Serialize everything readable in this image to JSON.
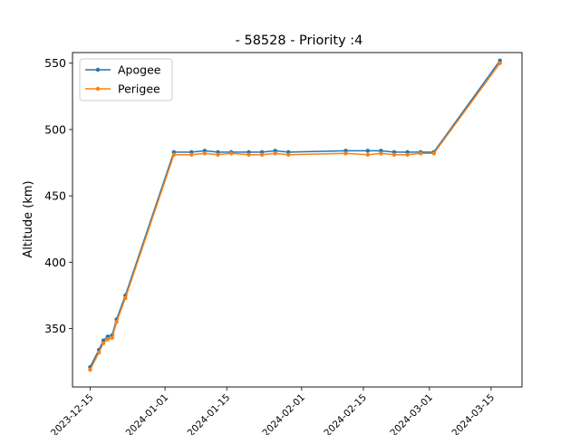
{
  "chart_data": {
    "type": "line",
    "title": "- 58528 - Priority :4",
    "xlabel": "",
    "ylabel": "Altitude (km)",
    "x_type": "date",
    "xlim": [
      "2023-12-11",
      "2024-03-22"
    ],
    "ylim": [
      306,
      558
    ],
    "x_ticks": [
      "2023-12-15",
      "2024-01-01",
      "2024-01-15",
      "2024-02-01",
      "2024-02-15",
      "2024-03-01",
      "2024-03-15"
    ],
    "y_ticks": [
      350,
      400,
      450,
      500,
      550
    ],
    "grid": false,
    "legend_position": "upper left",
    "series": [
      {
        "name": "Apogee",
        "color": "#1f77b4",
        "points": [
          [
            "2023-12-15",
            321
          ],
          [
            "2023-12-17",
            334
          ],
          [
            "2023-12-18",
            341
          ],
          [
            "2023-12-19",
            344
          ],
          [
            "2023-12-20",
            345
          ],
          [
            "2023-12-21",
            357
          ],
          [
            "2023-12-23",
            375
          ],
          [
            "2024-01-03",
            483
          ],
          [
            "2024-01-07",
            483
          ],
          [
            "2024-01-10",
            484
          ],
          [
            "2024-01-13",
            483
          ],
          [
            "2024-01-16",
            483
          ],
          [
            "2024-01-20",
            483
          ],
          [
            "2024-01-23",
            483
          ],
          [
            "2024-01-26",
            484
          ],
          [
            "2024-01-29",
            483
          ],
          [
            "2024-02-11",
            484
          ],
          [
            "2024-02-16",
            484
          ],
          [
            "2024-02-19",
            484
          ],
          [
            "2024-02-22",
            483
          ],
          [
            "2024-02-25",
            483
          ],
          [
            "2024-02-28",
            483
          ],
          [
            "2024-03-02",
            483
          ],
          [
            "2024-03-17",
            552
          ]
        ]
      },
      {
        "name": "Perigee",
        "color": "#ff7f0e",
        "points": [
          [
            "2023-12-15",
            319
          ],
          [
            "2023-12-17",
            332
          ],
          [
            "2023-12-18",
            339
          ],
          [
            "2023-12-19",
            342
          ],
          [
            "2023-12-20",
            343
          ],
          [
            "2023-12-21",
            355
          ],
          [
            "2023-12-23",
            373
          ],
          [
            "2024-01-03",
            481
          ],
          [
            "2024-01-07",
            481
          ],
          [
            "2024-01-10",
            482
          ],
          [
            "2024-01-13",
            481
          ],
          [
            "2024-01-16",
            482
          ],
          [
            "2024-01-20",
            481
          ],
          [
            "2024-01-23",
            481
          ],
          [
            "2024-01-26",
            482
          ],
          [
            "2024-01-29",
            481
          ],
          [
            "2024-02-11",
            482
          ],
          [
            "2024-02-16",
            481
          ],
          [
            "2024-02-19",
            482
          ],
          [
            "2024-02-22",
            481
          ],
          [
            "2024-02-25",
            481
          ],
          [
            "2024-02-28",
            482
          ],
          [
            "2024-03-02",
            482
          ],
          [
            "2024-03-17",
            550
          ]
        ]
      }
    ]
  }
}
